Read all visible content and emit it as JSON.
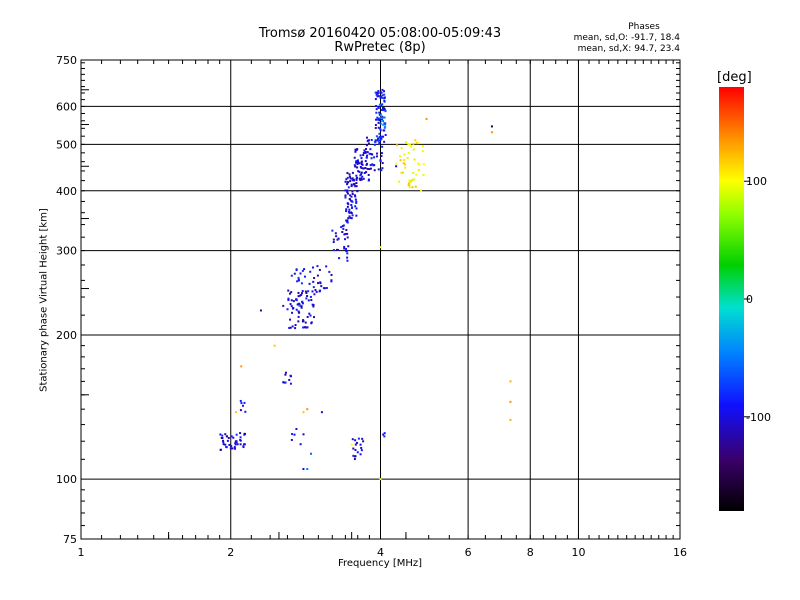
{
  "chart_data": {
    "type": "scatter",
    "title": "Tromsø 20160420 05:08:00-05:09:43",
    "subtitle": "RwPretec (8p)",
    "xlabel": "Frequency [MHz]",
    "ylabel": "Stationary phase Virtual Height [km]",
    "xscale": "log",
    "yscale": "log",
    "xlim": [
      1,
      16
    ],
    "ylim": [
      75,
      750
    ],
    "xticks": [
      1,
      2,
      4,
      6,
      8,
      10,
      16
    ],
    "yticks": [
      75,
      100,
      200,
      300,
      400,
      500,
      600,
      750
    ],
    "grid": true,
    "legend": {
      "title": "Phases",
      "stat_o": "mean, sd,O: -91.7, 18.4",
      "stat_x": "mean, sd,X:  94.7, 23.4"
    },
    "colorbar": {
      "unit": "[deg]",
      "range": [
        -180,
        180
      ],
      "ticks": [
        100,
        0,
        -100
      ]
    },
    "clusters": [
      {
        "f": [
          1.9,
          2.15
        ],
        "h": [
          115,
          125
        ],
        "phase": -110,
        "n": 45
      },
      {
        "f": [
          2.05,
          2.15
        ],
        "h": [
          135,
          150
        ],
        "phase": -110,
        "n": 6
      },
      {
        "f": [
          2.55,
          2.65
        ],
        "h": [
          158,
          168
        ],
        "phase": -110,
        "n": 10
      },
      {
        "f": [
          2.6,
          2.95
        ],
        "h": [
          205,
          250
        ],
        "phase": -110,
        "n": 70
      },
      {
        "f": [
          2.65,
          2.9
        ],
        "h": [
          255,
          275
        ],
        "phase": -100,
        "n": 15
      },
      {
        "f": [
          2.9,
          3.2
        ],
        "h": [
          245,
          280
        ],
        "phase": -110,
        "n": 25
      },
      {
        "f": [
          3.2,
          3.45
        ],
        "h": [
          285,
          350
        ],
        "phase": -110,
        "n": 35
      },
      {
        "f": [
          3.4,
          3.6
        ],
        "h": [
          350,
          440
        ],
        "phase": -110,
        "n": 70
      },
      {
        "f": [
          3.55,
          3.8
        ],
        "h": [
          420,
          490
        ],
        "phase": -110,
        "n": 60
      },
      {
        "f": [
          3.75,
          4.05
        ],
        "h": [
          440,
          520
        ],
        "phase": -110,
        "n": 40
      },
      {
        "f": [
          3.9,
          4.1
        ],
        "h": [
          500,
          650
        ],
        "phase": -100,
        "n": 70
      },
      {
        "f": [
          3.95,
          4.1
        ],
        "h": [
          540,
          620
        ],
        "phase": -60,
        "n": 12
      },
      {
        "f": [
          3.5,
          3.7
        ],
        "h": [
          110,
          122
        ],
        "phase": -110,
        "n": 18
      },
      {
        "f": [
          2.65,
          2.85
        ],
        "h": [
          118,
          128
        ],
        "phase": -110,
        "n": 6
      },
      {
        "f": [
          4.05,
          4.1
        ],
        "h": [
          118,
          126
        ],
        "phase": -110,
        "n": 3
      },
      {
        "f": [
          4.3,
          4.9
        ],
        "h": [
          400,
          510
        ],
        "phase": 105,
        "n": 45
      }
    ],
    "points": [
      {
        "f": 2.55,
        "h": 230,
        "phase": -110
      },
      {
        "f": 2.75,
        "h": 230,
        "phase": -60
      },
      {
        "f": 2.45,
        "h": 190,
        "phase": 120
      },
      {
        "f": 2.3,
        "h": 225,
        "phase": -120
      },
      {
        "f": 2.8,
        "h": 105,
        "phase": -110
      },
      {
        "f": 2.85,
        "h": 105,
        "phase": -60
      },
      {
        "f": 3.05,
        "h": 138,
        "phase": -110
      },
      {
        "f": 2.8,
        "h": 138,
        "phase": 120
      },
      {
        "f": 2.85,
        "h": 140,
        "phase": 140
      },
      {
        "f": 2.9,
        "h": 113,
        "phase": -70
      },
      {
        "f": 2.1,
        "h": 172,
        "phase": 140
      },
      {
        "f": 2.05,
        "h": 138,
        "phase": 120
      },
      {
        "f": 4.0,
        "h": 305,
        "phase": 100
      },
      {
        "f": 4.0,
        "h": 100,
        "phase": 100
      },
      {
        "f": 4.3,
        "h": 450,
        "phase": -110
      },
      {
        "f": 4.5,
        "h": 505,
        "phase": 90
      },
      {
        "f": 4.95,
        "h": 565,
        "phase": 140
      },
      {
        "f": 6.7,
        "h": 545,
        "phase": -160
      },
      {
        "f": 6.7,
        "h": 530,
        "phase": 140
      },
      {
        "f": 7.3,
        "h": 160,
        "phase": 130
      },
      {
        "f": 7.3,
        "h": 145,
        "phase": 140
      },
      {
        "f": 7.3,
        "h": 133,
        "phase": 130
      },
      {
        "f": 3.5,
        "h": 118,
        "phase": 100
      }
    ]
  }
}
